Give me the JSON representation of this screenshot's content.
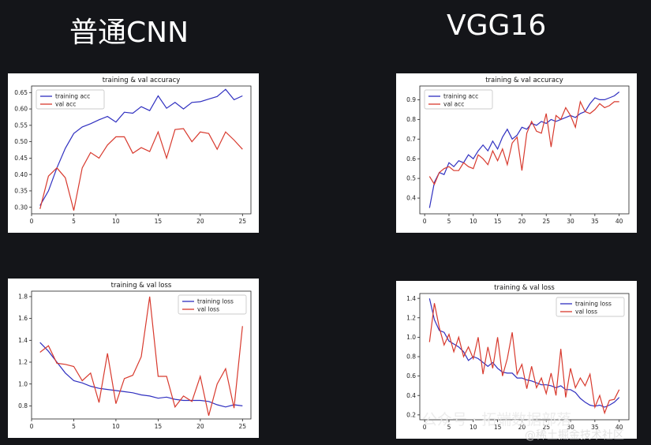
{
  "headings": {
    "left": "普通CNN",
    "right": "VGG16"
  },
  "watermark": {
    "main": "公众号 · 拓端数据部落",
    "sub": "@稀土掘金技术社区"
  },
  "colors": {
    "train": "#3030c0",
    "val": "#d83a2e",
    "background": "#141519"
  },
  "chart_data": [
    {
      "id": "cnn-acc",
      "type": "line",
      "title": "training & val accuracy",
      "xlim": [
        0,
        26
      ],
      "ylim": [
        0.28,
        0.67
      ],
      "xticks": [
        0,
        5,
        10,
        15,
        20,
        25
      ],
      "yticks": [
        0.3,
        0.35,
        0.4,
        0.45,
        0.5,
        0.55,
        0.6,
        0.65
      ],
      "ytick_labels": [
        "0.30",
        "0.35",
        "0.40",
        "0.45",
        "0.50",
        "0.55",
        "0.60",
        "0.65"
      ],
      "legend": "top-left",
      "x": [
        1,
        2,
        3,
        4,
        5,
        6,
        7,
        8,
        9,
        10,
        11,
        12,
        13,
        14,
        15,
        16,
        17,
        18,
        19,
        20,
        21,
        22,
        23,
        24,
        25
      ],
      "series": [
        {
          "name": "training acc",
          "role": "train",
          "values": [
            0.305,
            0.35,
            0.42,
            0.48,
            0.525,
            0.545,
            0.555,
            0.567,
            0.577,
            0.56,
            0.59,
            0.587,
            0.607,
            0.595,
            0.64,
            0.602,
            0.62,
            0.6,
            0.62,
            0.622,
            0.63,
            0.638,
            0.66,
            0.628,
            0.64
          ]
        },
        {
          "name": "val acc",
          "role": "val",
          "values": [
            0.295,
            0.395,
            0.42,
            0.39,
            0.29,
            0.42,
            0.467,
            0.45,
            0.49,
            0.515,
            0.515,
            0.465,
            0.482,
            0.47,
            0.53,
            0.45,
            0.537,
            0.54,
            0.5,
            0.53,
            0.525,
            0.477,
            0.53,
            0.505,
            0.477
          ]
        }
      ]
    },
    {
      "id": "cnn-loss",
      "type": "line",
      "title": "training & val loss",
      "xlim": [
        0,
        26
      ],
      "ylim": [
        0.68,
        1.85
      ],
      "xticks": [
        0,
        5,
        10,
        15,
        20,
        25
      ],
      "yticks": [
        0.8,
        1.0,
        1.2,
        1.4,
        1.6,
        1.8
      ],
      "ytick_labels": [
        "0.8",
        "1.0",
        "1.2",
        "1.4",
        "1.6",
        "1.8"
      ],
      "legend": "top-right",
      "x": [
        1,
        2,
        3,
        4,
        5,
        6,
        7,
        8,
        9,
        10,
        11,
        12,
        13,
        14,
        15,
        16,
        17,
        18,
        19,
        20,
        21,
        22,
        23,
        24,
        25
      ],
      "series": [
        {
          "name": "training loss",
          "role": "train",
          "values": [
            1.38,
            1.3,
            1.2,
            1.1,
            1.03,
            1.01,
            0.98,
            0.96,
            0.95,
            0.94,
            0.93,
            0.92,
            0.9,
            0.89,
            0.87,
            0.88,
            0.86,
            0.85,
            0.85,
            0.85,
            0.84,
            0.81,
            0.79,
            0.81,
            0.8
          ]
        },
        {
          "name": "val loss",
          "role": "val",
          "values": [
            1.29,
            1.35,
            1.19,
            1.18,
            1.16,
            1.03,
            1.1,
            0.83,
            1.28,
            0.82,
            1.05,
            1.08,
            1.25,
            1.8,
            1.07,
            1.07,
            0.79,
            0.89,
            0.84,
            1.07,
            0.71,
            1.0,
            1.14,
            0.78,
            1.53
          ]
        }
      ]
    },
    {
      "id": "vgg-acc",
      "type": "line",
      "title": "training & val accuracy",
      "xlim": [
        -1,
        42
      ],
      "ylim": [
        0.32,
        0.97
      ],
      "xticks": [
        0,
        5,
        10,
        15,
        20,
        25,
        30,
        35,
        40
      ],
      "yticks": [
        0.4,
        0.5,
        0.6,
        0.7,
        0.8,
        0.9
      ],
      "ytick_labels": [
        "0.4",
        "0.5",
        "0.6",
        "0.7",
        "0.8",
        "0.9"
      ],
      "legend": "top-left",
      "x": [
        1,
        2,
        3,
        4,
        5,
        6,
        7,
        8,
        9,
        10,
        11,
        12,
        13,
        14,
        15,
        16,
        17,
        18,
        19,
        20,
        21,
        22,
        23,
        24,
        25,
        26,
        27,
        28,
        29,
        30,
        31,
        32,
        33,
        34,
        35,
        36,
        37,
        38,
        39,
        40
      ],
      "series": [
        {
          "name": "training acc",
          "role": "train",
          "values": [
            0.35,
            0.48,
            0.53,
            0.52,
            0.58,
            0.56,
            0.59,
            0.58,
            0.62,
            0.6,
            0.64,
            0.67,
            0.64,
            0.69,
            0.65,
            0.71,
            0.75,
            0.7,
            0.72,
            0.76,
            0.75,
            0.78,
            0.77,
            0.79,
            0.78,
            0.8,
            0.79,
            0.8,
            0.81,
            0.82,
            0.81,
            0.83,
            0.84,
            0.88,
            0.91,
            0.9,
            0.9,
            0.91,
            0.92,
            0.94
          ]
        },
        {
          "name": "val acc",
          "role": "val",
          "values": [
            0.51,
            0.47,
            0.53,
            0.55,
            0.56,
            0.54,
            0.54,
            0.58,
            0.56,
            0.55,
            0.62,
            0.6,
            0.57,
            0.64,
            0.59,
            0.65,
            0.57,
            0.68,
            0.71,
            0.54,
            0.73,
            0.79,
            0.74,
            0.73,
            0.83,
            0.66,
            0.82,
            0.8,
            0.86,
            0.82,
            0.76,
            0.89,
            0.84,
            0.83,
            0.85,
            0.88,
            0.86,
            0.87,
            0.89,
            0.89
          ]
        }
      ]
    },
    {
      "id": "vgg-loss",
      "type": "line",
      "title": "training & val loss",
      "xlim": [
        -1,
        42
      ],
      "ylim": [
        0.15,
        1.45
      ],
      "xticks": [
        0,
        5,
        10,
        15,
        20,
        25,
        30,
        35,
        40
      ],
      "yticks": [
        0.2,
        0.4,
        0.6,
        0.8,
        1.0,
        1.2,
        1.4
      ],
      "ytick_labels": [
        "0.2",
        "0.4",
        "0.6",
        "0.8",
        "1.0",
        "1.2",
        "1.4"
      ],
      "legend": "top-right",
      "x": [
        1,
        2,
        3,
        4,
        5,
        6,
        7,
        8,
        9,
        10,
        11,
        12,
        13,
        14,
        15,
        16,
        17,
        18,
        19,
        20,
        21,
        22,
        23,
        24,
        25,
        26,
        27,
        28,
        29,
        30,
        31,
        32,
        33,
        34,
        35,
        36,
        37,
        38,
        39,
        40
      ],
      "series": [
        {
          "name": "training loss",
          "role": "train",
          "values": [
            1.4,
            1.18,
            1.07,
            1.05,
            0.96,
            0.93,
            0.9,
            0.85,
            0.76,
            0.8,
            0.78,
            0.74,
            0.7,
            0.74,
            0.68,
            0.64,
            0.63,
            0.63,
            0.58,
            0.58,
            0.56,
            0.55,
            0.53,
            0.51,
            0.51,
            0.5,
            0.48,
            0.5,
            0.46,
            0.46,
            0.43,
            0.37,
            0.33,
            0.3,
            0.29,
            0.3,
            0.28,
            0.3,
            0.33,
            0.38
          ]
        },
        {
          "name": "val loss",
          "role": "val",
          "values": [
            0.95,
            1.35,
            1.1,
            0.92,
            1.03,
            0.85,
            1.0,
            0.8,
            0.9,
            0.78,
            1.0,
            0.62,
            0.9,
            0.68,
            1.0,
            0.6,
            0.78,
            1.05,
            0.62,
            0.72,
            0.47,
            0.7,
            0.48,
            0.58,
            0.42,
            0.63,
            0.4,
            0.88,
            0.38,
            0.68,
            0.48,
            0.58,
            0.5,
            0.62,
            0.28,
            0.4,
            0.22,
            0.35,
            0.36,
            0.46
          ]
        }
      ]
    }
  ]
}
